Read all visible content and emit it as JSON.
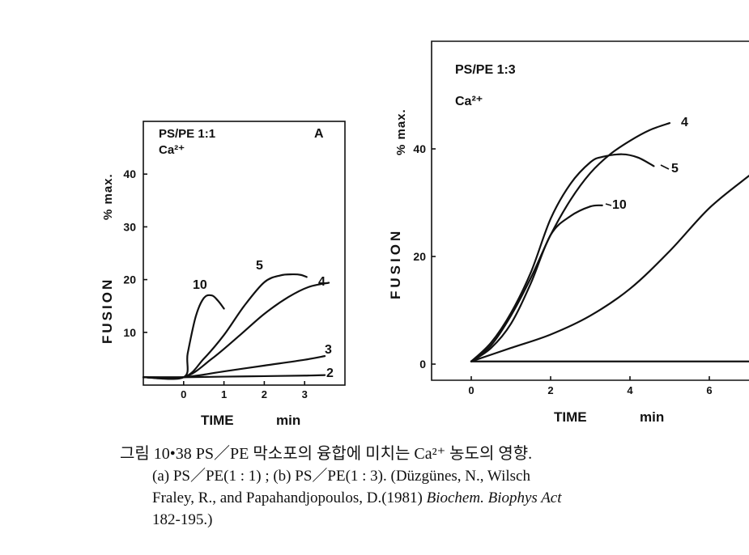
{
  "chart_data": [
    {
      "type": "line",
      "panel_letter": "A",
      "legend_lines": [
        "PS/PE 1:1",
        "Ca²⁺"
      ],
      "xlabel": "TIME",
      "xunit": "min",
      "ylabel": "FUSION",
      "yunit": "% max.",
      "xlim": [
        -1,
        4
      ],
      "ylim": [
        0,
        50
      ],
      "xticks": [
        0,
        1,
        2,
        3
      ],
      "yticks": [
        10,
        20,
        30,
        40
      ],
      "series": [
        {
          "name": "10",
          "x": [
            -1,
            0,
            0.1,
            0.3,
            0.5,
            0.7,
            0.85,
            1.0
          ],
          "y": [
            1.5,
            1.5,
            6,
            13,
            16.5,
            17,
            16,
            14.5
          ]
        },
        {
          "name": "5",
          "x": [
            -1,
            0,
            0.5,
            1.0,
            1.5,
            2.0,
            2.4,
            2.7,
            2.9,
            3.05
          ],
          "y": [
            1.5,
            1.5,
            5,
            9.5,
            15,
            19.5,
            20.8,
            21,
            20.9,
            20.5
          ]
        },
        {
          "name": "4",
          "x": [
            -1,
            0,
            0.7,
            1.4,
            2.0,
            2.6,
            3.1,
            3.6
          ],
          "y": [
            1.5,
            1.5,
            5,
            9.5,
            13.5,
            16.7,
            18.6,
            19.4
          ]
        },
        {
          "name": "3",
          "x": [
            -1,
            0,
            1,
            2,
            3,
            3.5
          ],
          "y": [
            1.5,
            1.5,
            2.6,
            3.7,
            4.8,
            5.5
          ]
        },
        {
          "name": "2",
          "x": [
            -1,
            0,
            1,
            2,
            3,
            3.5
          ],
          "y": [
            1.5,
            1.5,
            1.6,
            1.7,
            1.8,
            1.9
          ]
        }
      ]
    },
    {
      "type": "line",
      "legend_lines": [
        "PS/PE 1:3",
        "Ca²⁺"
      ],
      "xlabel": "TIME",
      "xunit": "min",
      "ylabel": "FUSION",
      "yunit": "% max.",
      "xlim": [
        -1,
        7
      ],
      "ylim": [
        -3,
        60
      ],
      "xticks": [
        0,
        2,
        4,
        6
      ],
      "yticks": [
        0,
        20,
        40
      ],
      "series": [
        {
          "name": "4",
          "x": [
            0,
            0.5,
            1.0,
            1.5,
            2.0,
            2.5,
            3.0,
            3.5,
            4.0,
            4.5,
            5.0
          ],
          "y": [
            0.5,
            3.5,
            9,
            16,
            24,
            30.5,
            35.5,
            39,
            41.5,
            43.5,
            44.8
          ]
        },
        {
          "name": "5",
          "x": [
            0,
            0.5,
            1.0,
            1.5,
            2.0,
            2.5,
            3.0,
            3.3,
            3.8,
            4.2,
            4.6
          ],
          "y": [
            0.5,
            4,
            9.5,
            17,
            27,
            33.5,
            37.5,
            38.5,
            39,
            38.4,
            36.8
          ]
        },
        {
          "name": "10",
          "x": [
            0,
            0.5,
            1.0,
            1.5,
            2.0,
            2.5,
            3.0,
            3.3
          ],
          "y": [
            0.5,
            3,
            7.5,
            15,
            24,
            27.5,
            29.3,
            29.5
          ]
        },
        {
          "name": "",
          "x": [
            0,
            1,
            2,
            3,
            4,
            5,
            6,
            7
          ],
          "y": [
            0.5,
            3,
            5.5,
            9,
            14,
            21,
            29,
            35
          ]
        },
        {
          "name": "",
          "x": [
            0,
            7
          ],
          "y": [
            0.5,
            0.5
          ]
        }
      ]
    }
  ],
  "caption": {
    "line1": "그림 10•38  PS／PE 막소포의 융합에 미치는 Ca²⁺ 농도의 영향.",
    "line2": "(a) PS／PE(1 : 1) ; (b) PS／PE(1 : 3).   (Düzgünes, N., Wilsch",
    "line3a": "Fraley, R., and Papahandjopoulos, D.(1981) ",
    "line3b": "Biochem. Biophys Act",
    "line4": "182-195.)"
  }
}
